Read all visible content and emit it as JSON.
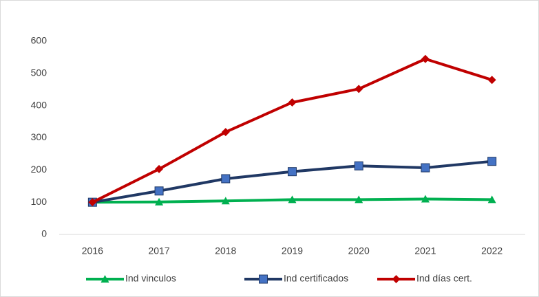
{
  "chart_data": {
    "type": "line",
    "categories": [
      "2016",
      "2017",
      "2018",
      "2019",
      "2020",
      "2021",
      "2022"
    ],
    "series": [
      {
        "name": "Ind vinculos",
        "color": "#00b050",
        "marker": "triangle",
        "marker_color": "#00b050",
        "values": [
          100,
          101,
          104,
          108,
          108,
          110,
          108
        ]
      },
      {
        "name": "Ind certificados",
        "color": "#203864",
        "marker": "square",
        "marker_color": "#4472c4",
        "values": [
          100,
          135,
          173,
          195,
          213,
          207,
          227
        ]
      },
      {
        "name": "Ind días cert.",
        "color": "#c00000",
        "marker": "diamond",
        "marker_color": "#c00000",
        "values": [
          100,
          203,
          318,
          410,
          452,
          545,
          480
        ]
      }
    ],
    "ylim": [
      0,
      600
    ],
    "yticks": [
      0,
      100,
      200,
      300,
      400,
      500,
      600
    ],
    "grid": false,
    "legend": "bottom"
  }
}
